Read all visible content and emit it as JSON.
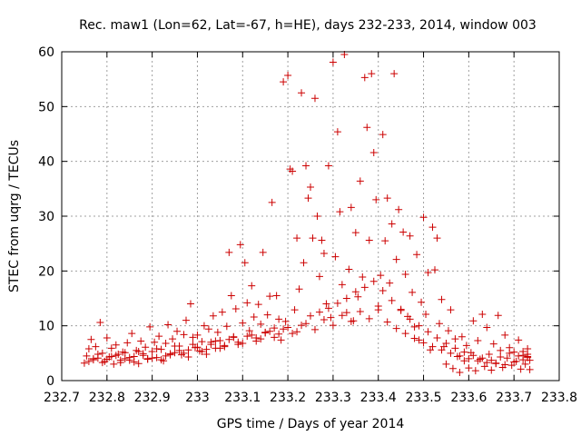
{
  "chart_data": {
    "type": "scatter",
    "title": "Rec. maw1 (Lon=62, Lat=-67, h=HE), days 232-233, 2014, window 003",
    "xlabel": "GPS time / Days of year 2014",
    "ylabel": "STEC from uqrg / TECUs",
    "xlim": [
      232.7,
      233.8
    ],
    "ylim": [
      0,
      60
    ],
    "xticks": [
      232.7,
      232.8,
      232.9,
      233.0,
      233.1,
      233.2,
      233.3,
      233.4,
      233.5,
      233.6,
      233.7,
      233.8
    ],
    "xtick_labels": [
      "232.7",
      "232.8",
      "232.9",
      "233",
      "233.1",
      "233.2",
      "233.3",
      "233.4",
      "233.5",
      "233.6",
      "233.7",
      "233.8"
    ],
    "yticks": [
      0,
      10,
      20,
      30,
      40,
      50,
      60
    ],
    "ytick_labels": [
      "0",
      "10",
      "20",
      "30",
      "40",
      "50",
      "60"
    ],
    "grid": true,
    "marker": "+",
    "color": "#cc0000",
    "points": [
      [
        232.75,
        3.2
      ],
      [
        232.755,
        4.5
      ],
      [
        232.76,
        5.8
      ],
      [
        232.765,
        7.5
      ],
      [
        232.77,
        3.8
      ],
      [
        232.775,
        6.2
      ],
      [
        232.78,
        4.1
      ],
      [
        232.785,
        10.6
      ],
      [
        232.79,
        5.0
      ],
      [
        232.795,
        3.5
      ],
      [
        232.8,
        7.8
      ],
      [
        232.805,
        4.3
      ],
      [
        232.81,
        5.9
      ],
      [
        232.815,
        3.0
      ],
      [
        232.82,
        6.5
      ],
      [
        232.825,
        4.8
      ],
      [
        232.83,
        3.3
      ],
      [
        232.835,
        5.2
      ],
      [
        232.84,
        4.0
      ],
      [
        232.845,
        6.9
      ],
      [
        232.85,
        3.7
      ],
      [
        232.855,
        8.6
      ],
      [
        232.86,
        4.4
      ],
      [
        232.865,
        5.5
      ],
      [
        232.87,
        3.1
      ],
      [
        232.875,
        7.2
      ],
      [
        232.88,
        4.6
      ],
      [
        232.885,
        6.1
      ],
      [
        232.89,
        3.9
      ],
      [
        232.895,
        9.8
      ],
      [
        232.9,
        5.3
      ],
      [
        232.905,
        7.0
      ],
      [
        232.91,
        4.2
      ],
      [
        232.915,
        8.1
      ],
      [
        232.92,
        5.7
      ],
      [
        232.925,
        3.6
      ],
      [
        232.93,
        6.8
      ],
      [
        232.935,
        10.2
      ],
      [
        232.94,
        4.9
      ],
      [
        232.945,
        7.6
      ],
      [
        232.95,
        5.1
      ],
      [
        232.955,
        9.0
      ],
      [
        232.96,
        6.3
      ],
      [
        232.965,
        4.7
      ],
      [
        232.97,
        8.4
      ],
      [
        232.975,
        11.0
      ],
      [
        232.98,
        5.6
      ],
      [
        232.985,
        14.0
      ],
      [
        232.99,
        7.9
      ],
      [
        232.995,
        6.0
      ],
      [
        233.0,
        8.3
      ],
      [
        233.005,
        5.4
      ],
      [
        233.01,
        7.1
      ],
      [
        233.015,
        10.0
      ],
      [
        233.02,
        4.8
      ],
      [
        233.025,
        9.4
      ],
      [
        233.03,
        6.6
      ],
      [
        233.035,
        11.8
      ],
      [
        233.04,
        5.9
      ],
      [
        233.045,
        8.8
      ],
      [
        233.05,
        7.3
      ],
      [
        233.055,
        12.5
      ],
      [
        233.06,
        6.2
      ],
      [
        233.065,
        9.9
      ],
      [
        233.07,
        23.4
      ],
      [
        233.075,
        15.5
      ],
      [
        233.08,
        8.0
      ],
      [
        233.085,
        13.1
      ],
      [
        233.09,
        7.0
      ],
      [
        233.095,
        24.8
      ],
      [
        233.1,
        10.5
      ],
      [
        233.105,
        21.5
      ],
      [
        233.11,
        14.2
      ],
      [
        233.115,
        9.1
      ],
      [
        233.12,
        17.3
      ],
      [
        233.125,
        11.6
      ],
      [
        233.13,
        7.8
      ],
      [
        233.135,
        13.9
      ],
      [
        233.14,
        10.3
      ],
      [
        233.145,
        23.4
      ],
      [
        233.15,
        8.7
      ],
      [
        233.155,
        12.0
      ],
      [
        233.16,
        15.4
      ],
      [
        233.165,
        32.5
      ],
      [
        233.17,
        9.6
      ],
      [
        233.175,
        15.5
      ],
      [
        233.18,
        11.2
      ],
      [
        233.185,
        7.4
      ],
      [
        233.19,
        54.5
      ],
      [
        233.195,
        10.8
      ],
      [
        233.2,
        55.7
      ],
      [
        233.205,
        38.6
      ],
      [
        233.21,
        38.2
      ],
      [
        233.215,
        12.9
      ],
      [
        233.22,
        26.0
      ],
      [
        233.225,
        16.7
      ],
      [
        233.23,
        52.5
      ],
      [
        233.235,
        21.5
      ],
      [
        233.24,
        39.2
      ],
      [
        233.245,
        33.3
      ],
      [
        233.25,
        35.3
      ],
      [
        233.255,
        26.0
      ],
      [
        233.26,
        51.5
      ],
      [
        233.265,
        30.0
      ],
      [
        233.27,
        19.0
      ],
      [
        233.275,
        25.6
      ],
      [
        233.28,
        23.2
      ],
      [
        233.285,
        14.0
      ],
      [
        233.29,
        39.2
      ],
      [
        233.295,
        11.5
      ],
      [
        233.3,
        58.1
      ],
      [
        233.305,
        22.6
      ],
      [
        233.31,
        45.4
      ],
      [
        233.315,
        30.8
      ],
      [
        233.32,
        17.5
      ],
      [
        233.325,
        59.5
      ],
      [
        233.33,
        12.4
      ],
      [
        233.335,
        20.3
      ],
      [
        233.34,
        31.6
      ],
      [
        233.345,
        10.9
      ],
      [
        233.35,
        27.0
      ],
      [
        233.355,
        15.3
      ],
      [
        233.36,
        36.4
      ],
      [
        233.365,
        18.9
      ],
      [
        233.37,
        55.3
      ],
      [
        233.375,
        46.2
      ],
      [
        233.38,
        25.6
      ],
      [
        233.385,
        56.0
      ],
      [
        233.39,
        41.6
      ],
      [
        233.395,
        33.0
      ],
      [
        233.4,
        13.6
      ],
      [
        233.405,
        19.2
      ],
      [
        233.41,
        44.9
      ],
      [
        233.415,
        25.5
      ],
      [
        233.42,
        33.3
      ],
      [
        233.425,
        17.8
      ],
      [
        233.43,
        28.6
      ],
      [
        233.435,
        56.0
      ],
      [
        233.44,
        22.1
      ],
      [
        233.445,
        31.2
      ],
      [
        233.45,
        13.0
      ],
      [
        233.455,
        27.1
      ],
      [
        233.46,
        19.4
      ],
      [
        233.465,
        11.7
      ],
      [
        233.47,
        26.4
      ],
      [
        233.475,
        16.1
      ],
      [
        233.48,
        9.8
      ],
      [
        233.485,
        23.0
      ],
      [
        233.49,
        7.4
      ],
      [
        233.495,
        14.3
      ],
      [
        233.5,
        29.8
      ],
      [
        233.505,
        12.1
      ],
      [
        233.51,
        19.7
      ],
      [
        233.515,
        5.6
      ],
      [
        233.52,
        28.0
      ],
      [
        233.525,
        20.2
      ],
      [
        233.53,
        26.0
      ],
      [
        233.535,
        10.4
      ],
      [
        233.54,
        14.8
      ],
      [
        233.545,
        6.2
      ],
      [
        233.55,
        3.0
      ],
      [
        233.555,
        9.1
      ],
      [
        233.56,
        12.9
      ],
      [
        233.565,
        2.2
      ],
      [
        233.57,
        7.6
      ],
      [
        233.575,
        4.4
      ],
      [
        233.58,
        1.5
      ],
      [
        233.585,
        8.0
      ],
      [
        233.59,
        3.6
      ],
      [
        233.595,
        6.4
      ],
      [
        233.6,
        2.3
      ],
      [
        233.605,
        5.1
      ],
      [
        233.61,
        10.9
      ],
      [
        233.615,
        1.8
      ],
      [
        233.62,
        7.3
      ],
      [
        233.625,
        3.9
      ],
      [
        233.63,
        12.1
      ],
      [
        233.635,
        2.6
      ],
      [
        233.64,
        9.7
      ],
      [
        233.645,
        4.8
      ],
      [
        233.65,
        1.9
      ],
      [
        233.655,
        6.7
      ],
      [
        233.66,
        3.2
      ],
      [
        233.665,
        11.9
      ],
      [
        233.67,
        5.5
      ],
      [
        233.675,
        2.4
      ],
      [
        233.68,
        8.3
      ],
      [
        233.685,
        4.1
      ],
      [
        233.69,
        6.0
      ],
      [
        233.695,
        2.8
      ],
      [
        233.7,
        5.2
      ],
      [
        233.705,
        3.5
      ],
      [
        233.71,
        7.4
      ],
      [
        233.715,
        2.1
      ],
      [
        233.72,
        4.6
      ],
      [
        233.725,
        3.0
      ],
      [
        233.73,
        5.8
      ],
      [
        233.735,
        2.0
      ],
      [
        233.73,
        4.2
      ],
      [
        233.735,
        3.7
      ],
      [
        232.76,
        3.5
      ],
      [
        232.78,
        4.8
      ],
      [
        232.8,
        3.9
      ],
      [
        232.82,
        4.6
      ],
      [
        232.84,
        5.1
      ],
      [
        232.86,
        3.4
      ],
      [
        232.88,
        4.9
      ],
      [
        232.9,
        4.1
      ],
      [
        232.92,
        3.8
      ],
      [
        232.94,
        4.7
      ],
      [
        232.96,
        5.5
      ],
      [
        232.98,
        4.3
      ],
      [
        233.0,
        6.1
      ],
      [
        233.02,
        5.7
      ],
      [
        233.04,
        7.2
      ],
      [
        233.06,
        6.4
      ],
      [
        233.08,
        7.9
      ],
      [
        233.1,
        6.8
      ],
      [
        233.12,
        8.3
      ],
      [
        233.14,
        7.6
      ],
      [
        233.16,
        9.0
      ],
      [
        233.18,
        8.5
      ],
      [
        233.2,
        9.7
      ],
      [
        233.22,
        8.9
      ],
      [
        233.24,
        10.4
      ],
      [
        233.26,
        9.3
      ],
      [
        233.28,
        11.1
      ],
      [
        233.3,
        10.1
      ],
      [
        233.32,
        11.9
      ],
      [
        233.34,
        10.8
      ],
      [
        233.36,
        12.6
      ],
      [
        233.38,
        11.3
      ],
      [
        233.4,
        12.9
      ],
      [
        233.42,
        10.7
      ],
      [
        233.44,
        9.5
      ],
      [
        233.46,
        8.6
      ],
      [
        233.48,
        7.7
      ],
      [
        233.5,
        6.9
      ],
      [
        233.52,
        6.2
      ],
      [
        233.54,
        5.6
      ],
      [
        233.56,
        5.0
      ],
      [
        233.58,
        4.5
      ],
      [
        233.6,
        4.0
      ],
      [
        233.62,
        3.6
      ],
      [
        233.64,
        3.3
      ],
      [
        233.66,
        3.1
      ],
      [
        233.68,
        2.9
      ],
      [
        233.7,
        3.4
      ],
      [
        233.72,
        3.8
      ],
      [
        233.73,
        4.4
      ],
      [
        232.77,
        4.0
      ],
      [
        232.79,
        3.3
      ],
      [
        232.81,
        4.4
      ],
      [
        232.83,
        3.7
      ],
      [
        232.85,
        4.2
      ],
      [
        232.87,
        5.3
      ],
      [
        232.89,
        4.0
      ],
      [
        232.91,
        5.8
      ],
      [
        232.93,
        4.5
      ],
      [
        232.95,
        6.3
      ],
      [
        232.97,
        5.0
      ],
      [
        232.99,
        6.6
      ],
      [
        233.01,
        5.3
      ],
      [
        233.03,
        7.0
      ],
      [
        233.05,
        5.9
      ],
      [
        233.07,
        7.5
      ],
      [
        233.09,
        6.6
      ],
      [
        233.11,
        8.1
      ],
      [
        233.13,
        7.2
      ],
      [
        233.15,
        8.8
      ],
      [
        233.17,
        7.9
      ],
      [
        233.19,
        9.4
      ],
      [
        233.21,
        8.6
      ],
      [
        233.23,
        10.1
      ],
      [
        233.25,
        11.8
      ],
      [
        233.27,
        12.5
      ],
      [
        233.29,
        13.2
      ],
      [
        233.31,
        14.1
      ],
      [
        233.33,
        15.0
      ],
      [
        233.35,
        16.2
      ],
      [
        233.37,
        17.0
      ],
      [
        233.39,
        18.1
      ],
      [
        233.41,
        16.4
      ],
      [
        233.43,
        14.6
      ],
      [
        233.45,
        12.8
      ],
      [
        233.47,
        11.2
      ],
      [
        233.49,
        10.0
      ],
      [
        233.51,
        8.9
      ],
      [
        233.53,
        7.8
      ],
      [
        233.55,
        6.8
      ],
      [
        233.57,
        5.9
      ],
      [
        233.59,
        5.2
      ],
      [
        233.61,
        4.6
      ],
      [
        233.63,
        4.1
      ],
      [
        233.65,
        3.7
      ],
      [
        233.67,
        4.3
      ],
      [
        233.69,
        5.0
      ],
      [
        233.71,
        4.5
      ],
      [
        233.72,
        5.3
      ],
      [
        233.73,
        4.8
      ]
    ]
  }
}
